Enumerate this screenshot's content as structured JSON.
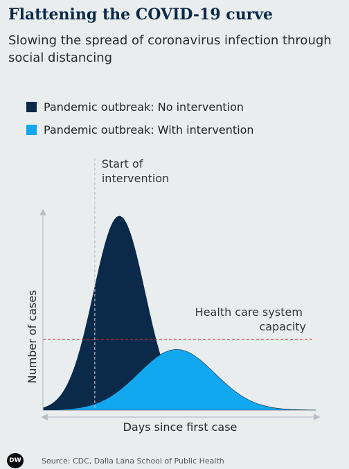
{
  "title": "Flattening the COVID-19 curve",
  "subtitle": "Slowing the spread of coronavirus infection through social distancing",
  "source": "Source: CDC, Dalla Lana School of Public Health",
  "logo_text": "DW",
  "colors": {
    "no_intervention": "#0b2a4a",
    "with_intervention": "#11a8f0",
    "capacity_line": "#c0392b",
    "intervention_line": "#b8bfc4",
    "axis": "#b8bfc4"
  },
  "chart_data": {
    "type": "area",
    "xlabel": "Days since first case",
    "ylabel": "Number of cases",
    "legend_position": "top-left",
    "series": [
      {
        "name": "Pandemic outbreak: No intervention",
        "peak_x": 0.28,
        "peak_y": 0.96,
        "spread": 0.095
      },
      {
        "name": "Pandemic outbreak: With intervention",
        "peak_x": 0.49,
        "peak_y": 0.3,
        "spread": 0.14
      }
    ],
    "annotations": [
      {
        "type": "vline",
        "x": 0.19,
        "label": "Start of\nintervention",
        "lines": [
          "Start of",
          "intervention"
        ]
      },
      {
        "type": "hline",
        "y": 0.35,
        "label": "Health care system\ncapacity",
        "lines": [
          "Health care system",
          "capacity"
        ]
      }
    ],
    "xlim": [
      0,
      1
    ],
    "ylim": [
      0,
      1
    ],
    "grid": false
  }
}
